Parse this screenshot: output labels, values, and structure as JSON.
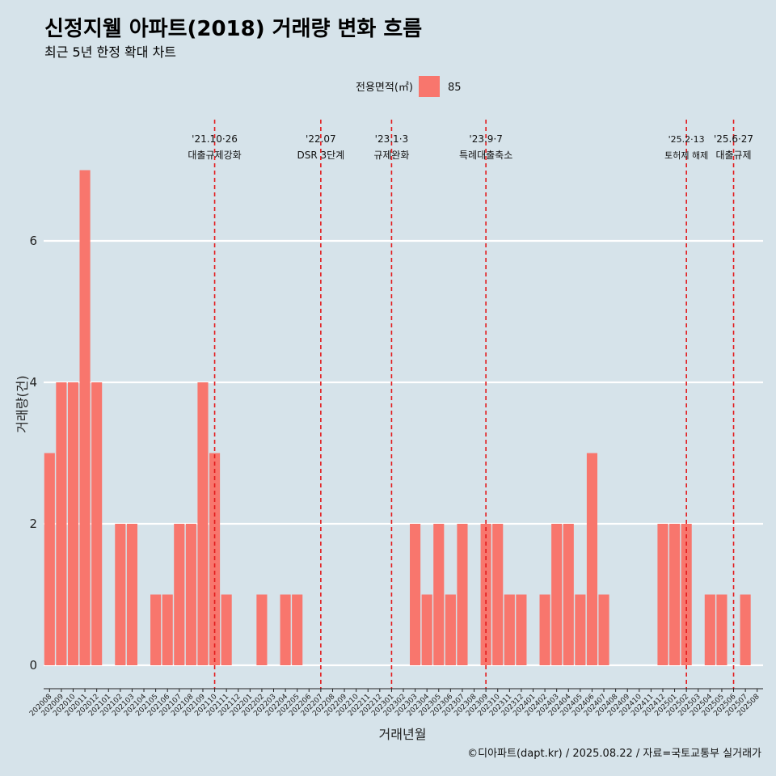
{
  "chart_data": {
    "type": "bar",
    "title": "신정지웰 아파트(2018) 거래량 변화 흐름",
    "subtitle": "최근 5년 한정 확대 차트",
    "xlabel": "거래년월",
    "ylabel": "거래량(건)",
    "ylim": [
      0,
      7
    ],
    "yticks": [
      0,
      2,
      4,
      6
    ],
    "grid": "horizontal",
    "legend": {
      "title": "전용면적(㎡)",
      "position": "top",
      "entries": [
        {
          "label": "85",
          "color": "#f8766d"
        }
      ]
    },
    "caption": "©디아파트(dapt.kr) / 2025.08.22 / 자료=국토교통부 실거래가",
    "categories": [
      "202008",
      "202009",
      "202010",
      "202011",
      "202012",
      "202101",
      "202102",
      "202103",
      "202104",
      "202105",
      "202106",
      "202107",
      "202108",
      "202109",
      "202110",
      "202111",
      "202112",
      "202201",
      "202202",
      "202203",
      "202204",
      "202205",
      "202206",
      "202207",
      "202208",
      "202209",
      "202210",
      "202211",
      "202212",
      "202301",
      "202302",
      "202303",
      "202304",
      "202305",
      "202306",
      "202307",
      "202308",
      "202309",
      "202310",
      "202311",
      "202312",
      "202401",
      "202402",
      "202403",
      "202404",
      "202405",
      "202406",
      "202407",
      "202408",
      "202409",
      "202410",
      "202411",
      "202412",
      "202501",
      "202502",
      "202503",
      "202504",
      "202505",
      "202506",
      "202507",
      "202508"
    ],
    "series": [
      {
        "name": "85",
        "color": "#f8766d",
        "values": [
          3,
          4,
          4,
          7,
          4,
          0,
          2,
          2,
          0,
          1,
          1,
          2,
          2,
          4,
          3,
          1,
          0,
          0,
          1,
          0,
          1,
          1,
          0,
          0,
          0,
          0,
          0,
          0,
          0,
          0,
          0,
          2,
          1,
          2,
          1,
          2,
          0,
          2,
          2,
          1,
          1,
          0,
          1,
          2,
          2,
          1,
          3,
          1,
          0,
          0,
          0,
          0,
          2,
          2,
          2,
          0,
          1,
          1,
          0,
          1,
          0
        ]
      }
    ],
    "events": [
      {
        "date": "'21.10·26",
        "label": "대출규제강화",
        "at": "202110",
        "small": false
      },
      {
        "date": "'22.07",
        "label": "DSR 3단계",
        "at": "202207",
        "small": false
      },
      {
        "date": "'23.1·3",
        "label": "규제완화",
        "at": "202301",
        "small": false
      },
      {
        "date": "'23.9·7",
        "label": "특례대출축소",
        "at": "202309",
        "small": false
      },
      {
        "date": "'25.2·13",
        "label": "토허제 해제",
        "at": "202502",
        "small": true
      },
      {
        "date": "'25.6·27",
        "label": "대출규제",
        "at": "202506",
        "small": false
      }
    ]
  }
}
